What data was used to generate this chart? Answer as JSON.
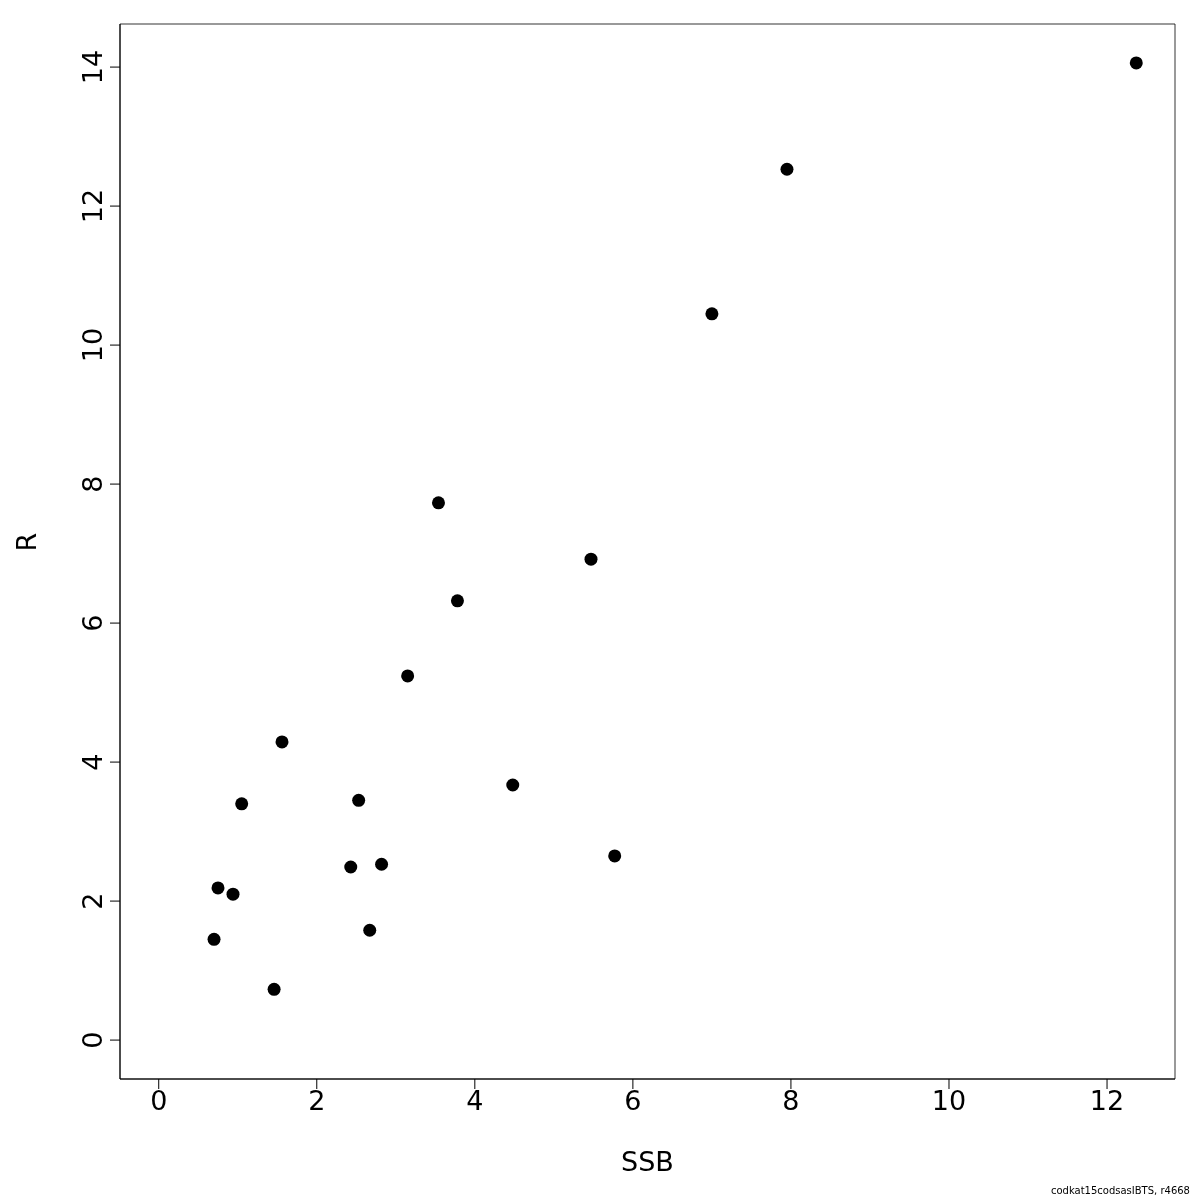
{
  "chart_data": {
    "type": "scatter",
    "xlabel": "SSB",
    "ylabel": "R",
    "annotations": [
      "codkat15codsasIBTS, r4668"
    ],
    "x": [
      12.37,
      7.95,
      7.0,
      3.54,
      5.47,
      3.78,
      3.15,
      1.56,
      4.48,
      2.53,
      1.05,
      5.77,
      2.82,
      2.43,
      0.75,
      0.94,
      0.7,
      2.67,
      1.46
    ],
    "series": [
      {
        "color": "#000000",
        "values": [
          14.06,
          12.53,
          10.45,
          7.73,
          6.92,
          6.32,
          5.24,
          4.29,
          3.67,
          3.45,
          3.4,
          2.65,
          2.53,
          2.49,
          2.19,
          2.1,
          1.45,
          1.58,
          0.73
        ]
      }
    ],
    "xlim": [
      -0.49,
      12.86
    ],
    "ylim": [
      -0.56,
      14.62
    ],
    "xticks": [
      0,
      2,
      4,
      6,
      8,
      10,
      12
    ],
    "yticks": [
      0,
      2,
      4,
      6,
      8,
      10,
      12,
      14
    ],
    "marker": "circle",
    "grid": false,
    "legend": false
  }
}
